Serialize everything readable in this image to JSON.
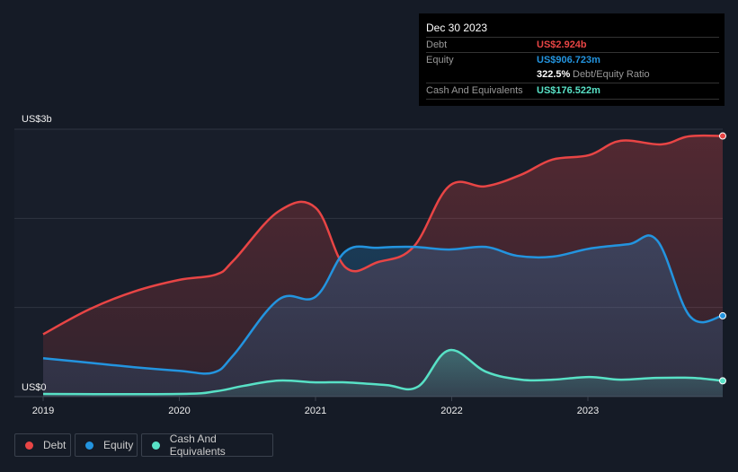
{
  "tooltip": {
    "date": "Dec 30 2023",
    "debt_label": "Debt",
    "debt_value": "US$2.924b",
    "equity_label": "Equity",
    "equity_value": "US$906.723m",
    "ratio_value": "322.5%",
    "ratio_label": "Debt/Equity Ratio",
    "cash_label": "Cash And Equivalents",
    "cash_value": "US$176.522m"
  },
  "legend": {
    "debt": "Debt",
    "equity": "Equity",
    "cash": "Cash And Equivalents"
  },
  "colors": {
    "debt": "#e84545",
    "equity": "#2394df",
    "cash": "#58e1c6"
  },
  "chart_data": {
    "type": "area",
    "ylabel_top": "US$3b",
    "ylabel_bottom": "US$0",
    "ylim": [
      0,
      3
    ],
    "xlim": [
      2019,
      2023.99
    ],
    "xticks": [
      "2019",
      "2020",
      "2021",
      "2022",
      "2023"
    ],
    "legend_position": "bottom-left",
    "series": [
      {
        "name": "Debt",
        "key": "debt",
        "x": [
          2019,
          2019.34,
          2019.67,
          2020,
          2020.27,
          2020.4,
          2020.73,
          2021,
          2021.22,
          2021.46,
          2021.72,
          2021.98,
          2022.25,
          2022.51,
          2022.74,
          2023.01,
          2023.24,
          2023.54,
          2023.74,
          2023.99
        ],
        "y": [
          0.7,
          0.98,
          1.18,
          1.31,
          1.37,
          1.53,
          2.08,
          2.12,
          1.45,
          1.51,
          1.68,
          2.36,
          2.36,
          2.49,
          2.66,
          2.71,
          2.87,
          2.83,
          2.92,
          2.924
        ]
      },
      {
        "name": "Equity",
        "key": "equity",
        "x": [
          2019,
          2019.34,
          2019.67,
          2020,
          2020.25,
          2020.4,
          2020.73,
          2021,
          2021.22,
          2021.46,
          2021.72,
          2021.98,
          2022.25,
          2022.48,
          2022.74,
          2023.01,
          2023.3,
          2023.51,
          2023.75,
          2023.99
        ],
        "y": [
          0.43,
          0.38,
          0.33,
          0.29,
          0.27,
          0.47,
          1.09,
          1.12,
          1.63,
          1.67,
          1.68,
          1.65,
          1.68,
          1.58,
          1.57,
          1.66,
          1.71,
          1.75,
          0.9,
          0.907
        ]
      },
      {
        "name": "Cash And Equivalents",
        "key": "cash",
        "x": [
          2019,
          2020,
          2020.27,
          2020.47,
          2020.73,
          2021,
          2021.22,
          2021.52,
          2021.75,
          2021.98,
          2022.25,
          2022.51,
          2022.74,
          2023.01,
          2023.24,
          2023.5,
          2023.77,
          2023.99
        ],
        "y": [
          0.03,
          0.03,
          0.06,
          0.12,
          0.18,
          0.16,
          0.16,
          0.13,
          0.11,
          0.52,
          0.28,
          0.19,
          0.19,
          0.22,
          0.19,
          0.21,
          0.21,
          0.177
        ]
      }
    ]
  }
}
